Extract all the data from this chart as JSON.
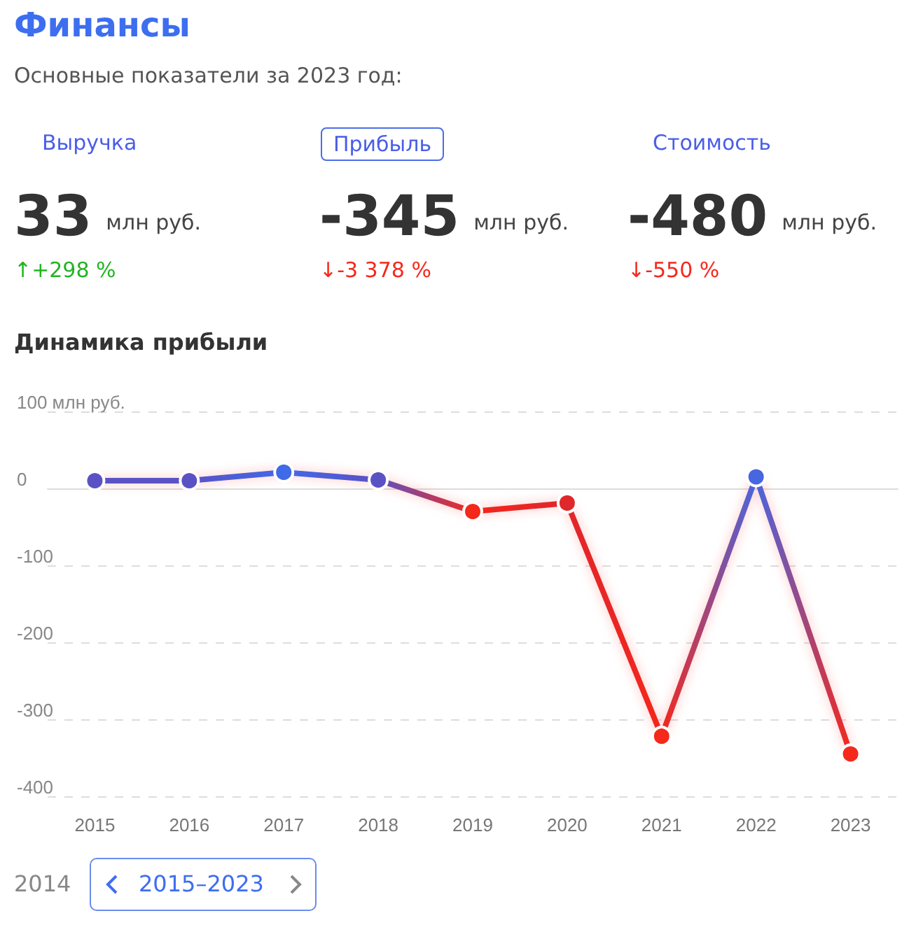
{
  "chart_data": {
    "type": "line",
    "title": "Финансы",
    "subtitle": "Основные показатели за 2023 год:",
    "annotations": [
      "Выручка",
      "Прибыль",
      "Стоимость",
      "33",
      "млн руб.",
      "↑+298 %",
      "-345",
      "млн руб.",
      "↓-3 378 %",
      "-480",
      "млн руб.",
      "↓-550 %",
      "Динамика прибыли",
      "2014",
      "2015–2023"
    ],
    "categories": [
      "2015",
      "2016",
      "2017",
      "2018",
      "2019",
      "2020",
      "2021",
      "2022",
      "2023"
    ],
    "series": [
      {
        "values": [
          10,
          10,
          21,
          11,
          -30,
          -19,
          -322,
          15,
          -345
        ],
        "colors": [
          "#5a52c4",
          "#5a52c4",
          "#3f6ae8",
          "#5a52c4",
          "#f5281c",
          "#e0282c",
          "#f5281c",
          "#4866e0",
          "#f5281c"
        ]
      }
    ],
    "ylim": [
      -400,
      100
    ],
    "yticks": [
      -400,
      -300,
      -200,
      -100,
      0,
      {
        "value": 100,
        "label": "100 млн руб."
      }
    ],
    "grid": "y",
    "marker": "circle",
    "line_style": "solid"
  }
}
